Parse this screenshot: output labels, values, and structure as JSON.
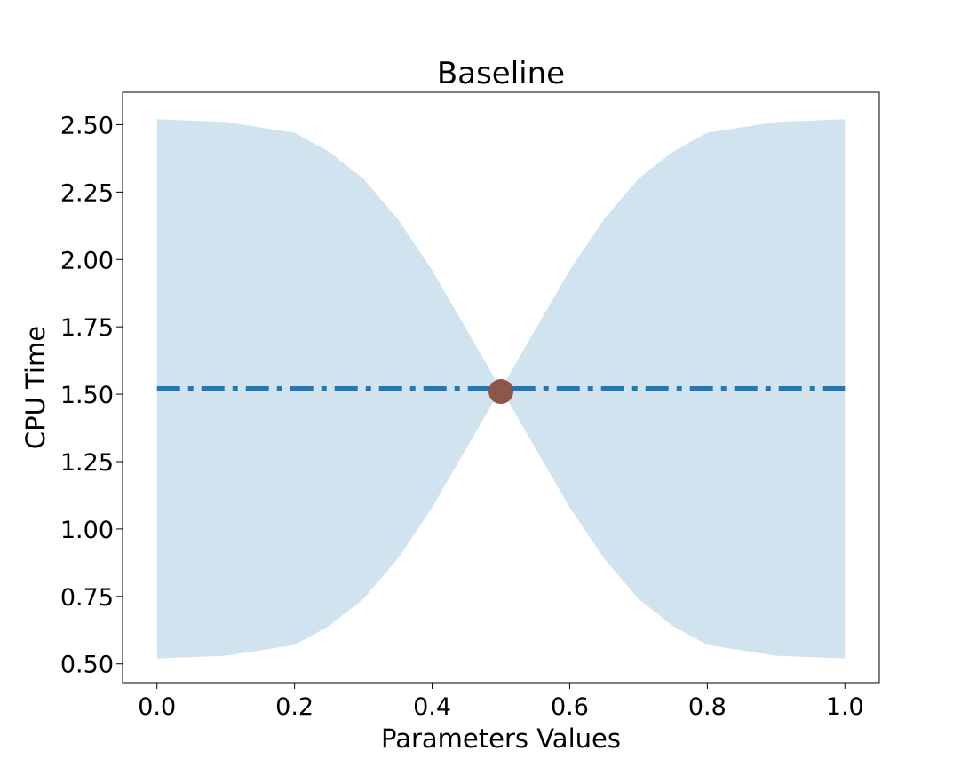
{
  "chart_data": {
    "type": "line",
    "title": "Baseline",
    "xlabel": "Parameters Values",
    "ylabel": "CPU Time",
    "xlim": [
      -0.05,
      1.05
    ],
    "ylim": [
      0.43,
      2.62
    ],
    "xticks": [
      "0.0",
      "0.2",
      "0.4",
      "0.6",
      "0.8",
      "1.0"
    ],
    "yticks": [
      "0.50",
      "0.75",
      "1.00",
      "1.25",
      "1.50",
      "1.75",
      "2.00",
      "2.25",
      "2.50"
    ],
    "grid": false,
    "colors": {
      "line": "#1f77b4",
      "band": "#d1e3ef",
      "point": "#8c564b"
    },
    "band": {
      "x": [
        0.0,
        0.1,
        0.2,
        0.25,
        0.3,
        0.35,
        0.4,
        0.45,
        0.5,
        0.55,
        0.6,
        0.65,
        0.7,
        0.75,
        0.8,
        0.9,
        1.0
      ],
      "upper": [
        2.52,
        2.51,
        2.47,
        2.4,
        2.3,
        2.15,
        1.96,
        1.74,
        1.52,
        1.74,
        1.96,
        2.15,
        2.3,
        2.4,
        2.47,
        2.51,
        2.52
      ],
      "lower": [
        0.52,
        0.53,
        0.57,
        0.64,
        0.74,
        0.89,
        1.08,
        1.3,
        1.52,
        1.3,
        1.08,
        0.89,
        0.74,
        0.64,
        0.57,
        0.53,
        0.52
      ]
    },
    "series": [
      {
        "x": [
          0.0,
          1.0
        ],
        "y": [
          1.52,
          1.52
        ],
        "style": "dashdot"
      }
    ],
    "points": [
      {
        "x": 0.5,
        "y": 1.51
      }
    ]
  }
}
